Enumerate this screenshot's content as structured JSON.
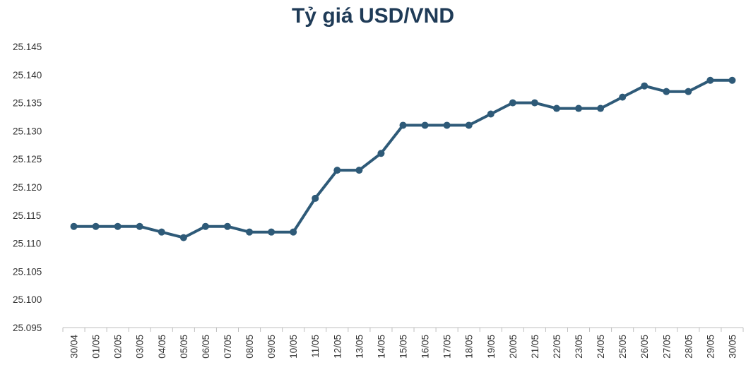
{
  "chart_data": {
    "type": "line",
    "title": "Tỷ giá USD/VND",
    "xlabel": "",
    "ylabel": "",
    "categories": [
      "30/04",
      "01/05",
      "02/05",
      "03/05",
      "04/05",
      "05/05",
      "06/05",
      "07/05",
      "08/05",
      "09/05",
      "10/05",
      "11/05",
      "12/05",
      "13/05",
      "14/05",
      "15/05",
      "16/05",
      "17/05",
      "18/05",
      "19/05",
      "20/05",
      "21/05",
      "22/05",
      "23/05",
      "24/05",
      "25/05",
      "26/05",
      "27/05",
      "28/05",
      "29/05",
      "30/05"
    ],
    "values": [
      25113,
      25113,
      25113,
      25113,
      25112,
      25111,
      25113,
      25113,
      25112,
      25112,
      25112,
      25118,
      25123,
      25123,
      25126,
      25131,
      25131,
      25131,
      25131,
      25133,
      25135,
      25135,
      25134,
      25134,
      25134,
      25136,
      25138,
      25137,
      25137,
      25139,
      25139
    ],
    "ylim": [
      25095,
      25145
    ],
    "yticks": [
      "25.095",
      "25.100",
      "25.105",
      "25.110",
      "25.115",
      "25.120",
      "25.125",
      "25.130",
      "25.135",
      "25.140",
      "25.145"
    ],
    "grid": false,
    "legend": "none",
    "colors": {
      "line": "#2e5a78",
      "title": "#1f3b57",
      "axis": "#bfbfbf",
      "text": "#333333"
    }
  }
}
